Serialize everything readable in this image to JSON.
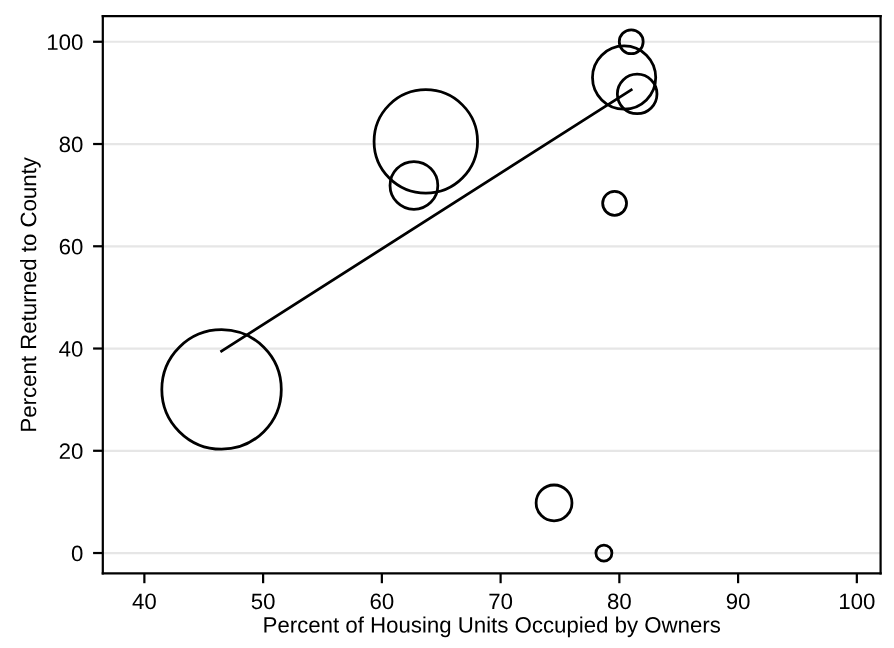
{
  "chart_data": {
    "type": "bubble",
    "xlabel": "Percent of Housing Units Occupied by Owners",
    "ylabel": "Percent Returned to County",
    "xlim": [
      36.5,
      102
    ],
    "ylim": [
      -4,
      105
    ],
    "xticks": [
      40,
      50,
      60,
      70,
      80,
      90,
      100
    ],
    "yticks": [
      0,
      20,
      40,
      60,
      80,
      100
    ],
    "grid": "y",
    "series": [
      {
        "color": "#000000",
        "x": [
          46.5,
          63.7,
          62.7,
          80.4,
          81.5,
          81.0,
          79.6,
          74.5,
          78.7
        ],
        "values": [
          32.0,
          80.5,
          71.9,
          93.0,
          89.8,
          100,
          68.4,
          9.8,
          0
        ],
        "sizes": [
          1,
          0.75,
          0.16,
          0.28,
          0.11,
          0.04,
          0.04,
          0.09,
          0.018
        ]
      },
      {
        "type": "line",
        "color": "#000000",
        "x": [
          46.5,
          81.0
        ],
        "values": [
          39.5,
          90.6
        ]
      }
    ]
  }
}
